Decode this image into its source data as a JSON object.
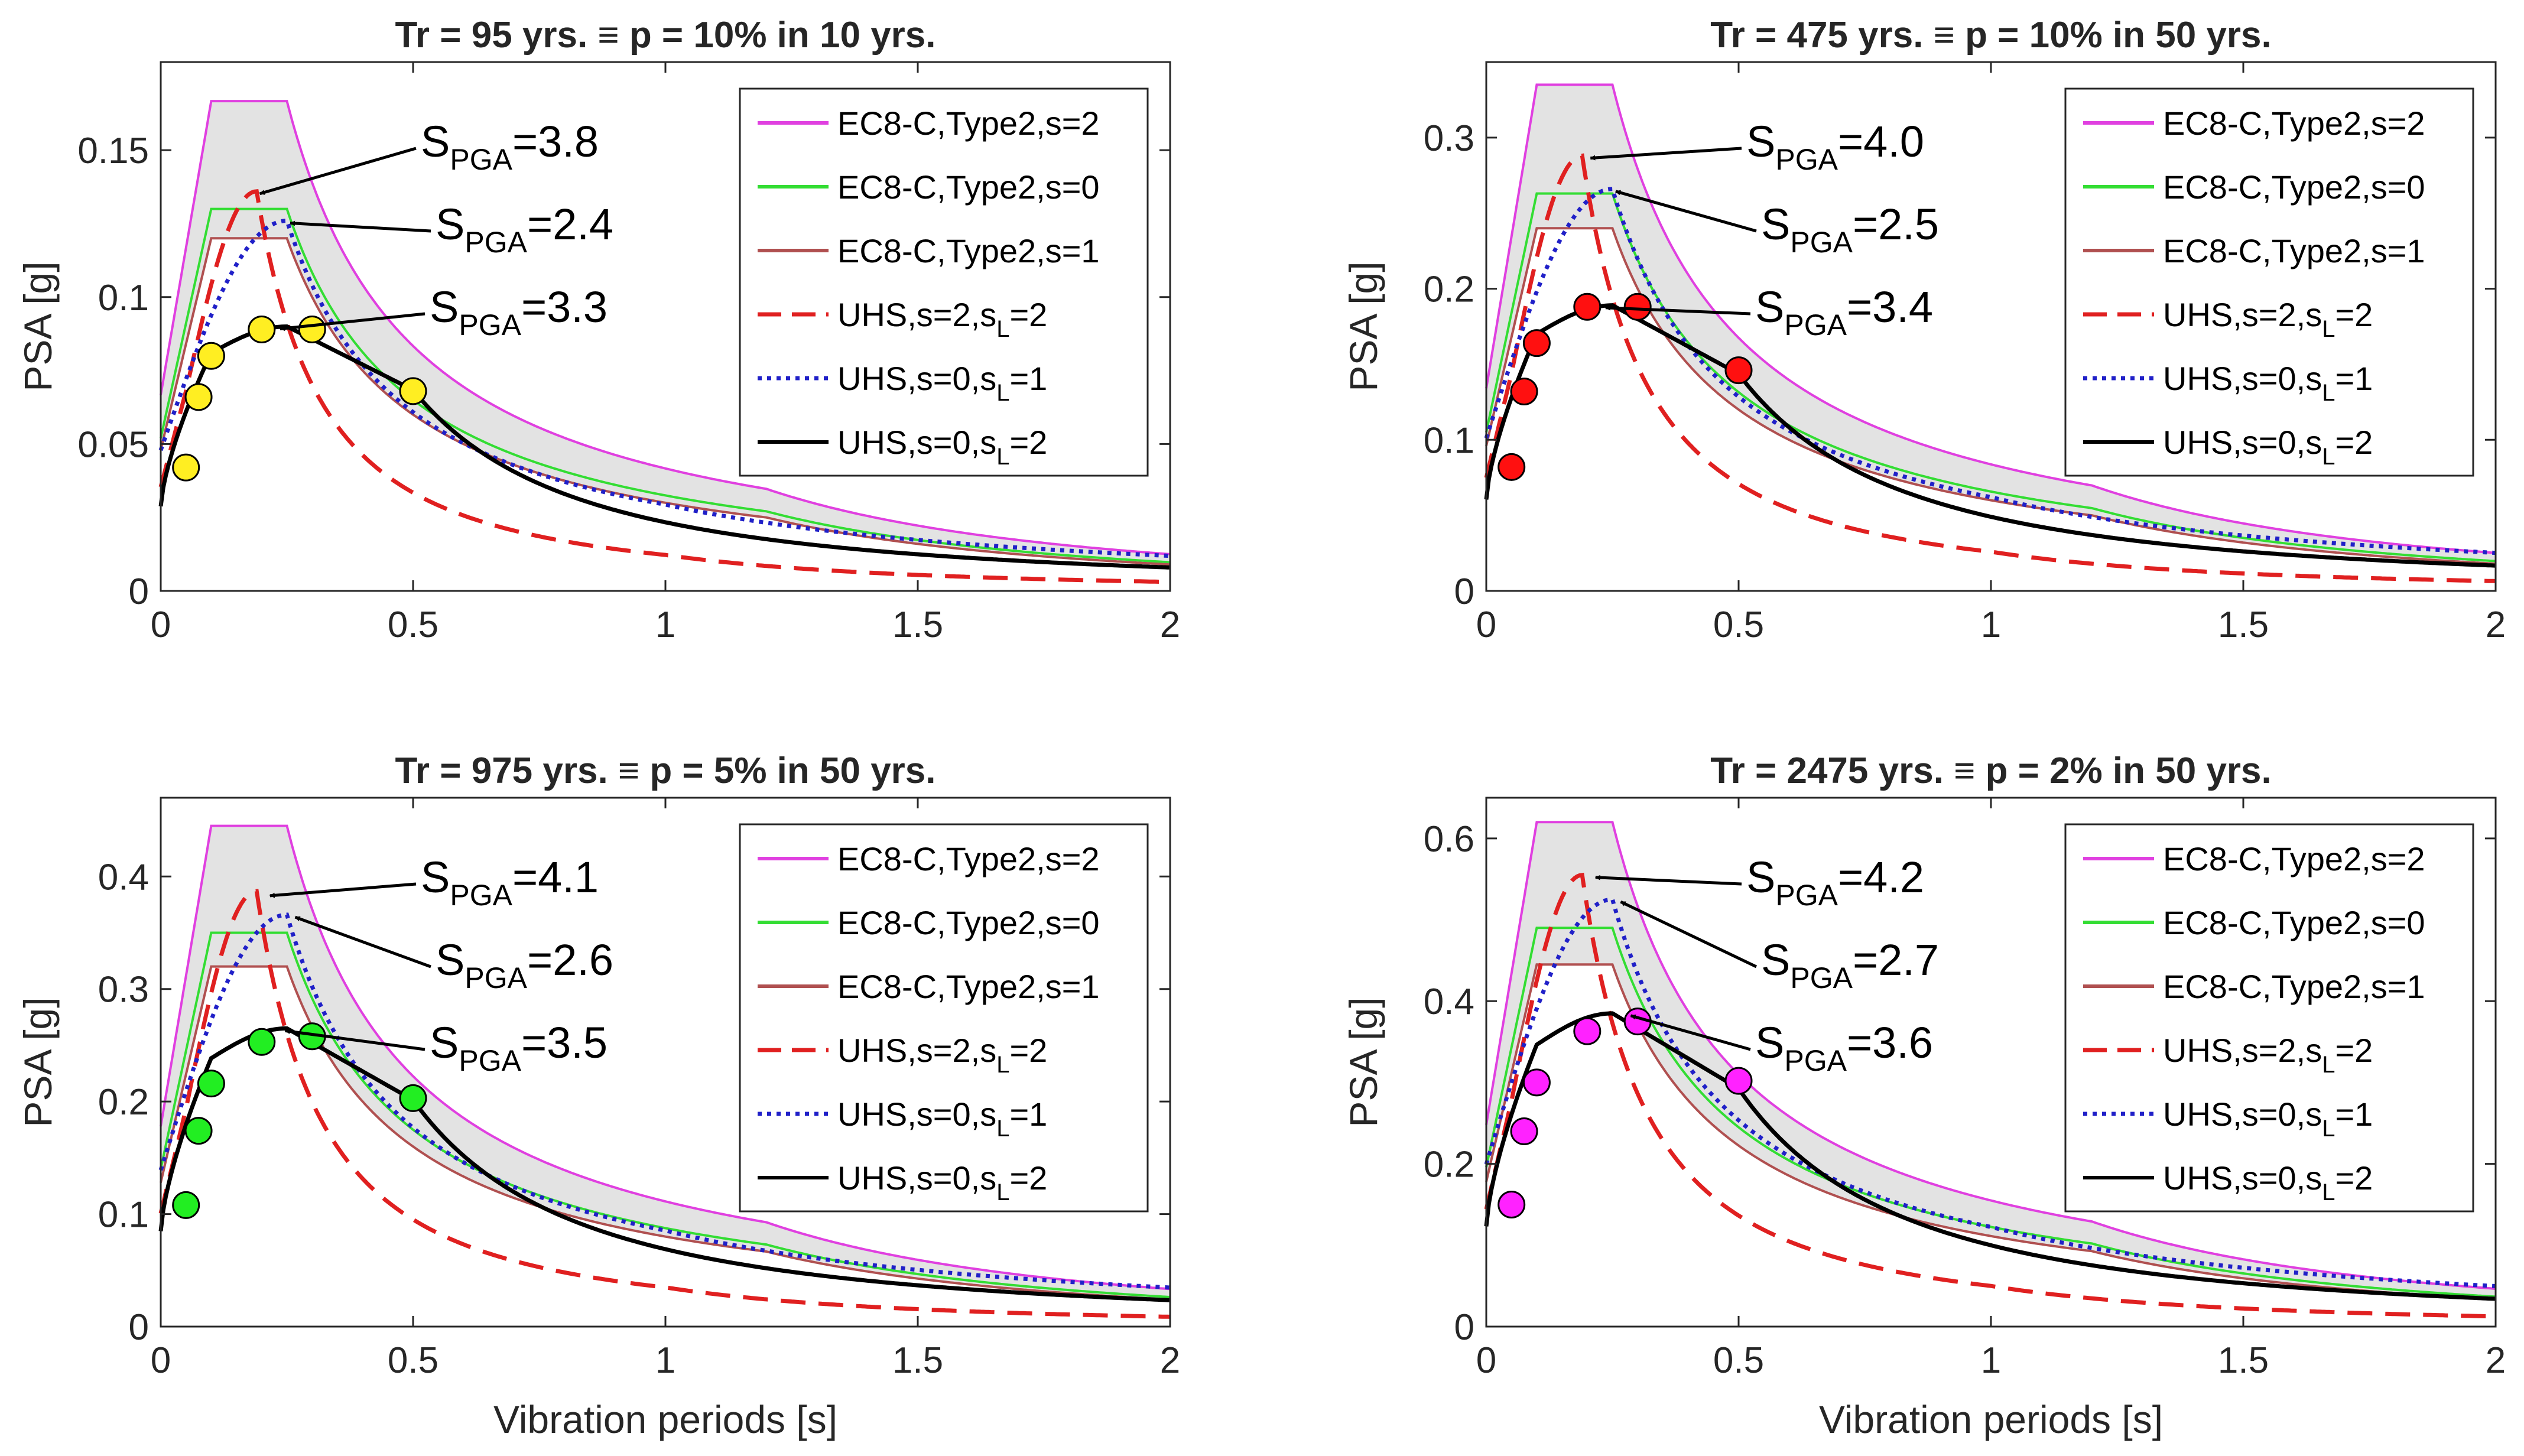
{
  "legend_labels": [
    {
      "text": "EC8-C,Type2,s=2",
      "color": "#e040e0",
      "dash": "solid"
    },
    {
      "text": "EC8-C,Type2,s=0",
      "color": "#33dd33",
      "dash": "solid"
    },
    {
      "text": "EC8-C,Type2,s=1",
      "color": "#b05050",
      "dash": "solid"
    },
    {
      "text": "UHS,s=2,s",
      "sub": "L",
      "tail": "=2",
      "color": "#e02020",
      "dash": "dashed"
    },
    {
      "text": "UHS,s=0,s",
      "sub": "L",
      "tail": "=1",
      "color": "#2020c8",
      "dash": "dotted"
    },
    {
      "text": "UHS,s=0,s",
      "sub": "L",
      "tail": "=2",
      "color": "#000000",
      "dash": "solid"
    }
  ],
  "colors": {
    "band_fill": "#e3e3e3",
    "axis": "#262626"
  },
  "chart_data": [
    {
      "type": "line",
      "title": "Tr = 95 yrs. ≡ p = 10% in 10 yrs.",
      "xlabel": "",
      "ylabel": "PSA [g]",
      "xlim": [
        0,
        2
      ],
      "ylim": [
        0,
        0.18
      ],
      "xticks": [
        0,
        0.5,
        1,
        1.5,
        2
      ],
      "xtick_labels": [
        "0",
        "0.5",
        "1",
        "1.5",
        "2"
      ],
      "yticks": [
        0,
        0.05,
        0.1,
        0.15
      ],
      "ytick_labels": [
        "0",
        "0.05",
        "0.1",
        "0.15"
      ],
      "marker_color": "#ffee22",
      "ec8": {
        "ag": [
          0.0667,
          0.052,
          0.048
        ],
        "plateau": [
          0.1667,
          0.13,
          0.12
        ]
      },
      "uhs_peaks": {
        "s2": 0.136,
        "s0L1": 0.126,
        "s0L2": 0.09
      },
      "markers": {
        "T": [
          0.05,
          0.075,
          0.1,
          0.2,
          0.3,
          0.5
        ],
        "PSA": [
          0.042,
          0.066,
          0.08,
          0.089,
          0.089,
          0.068
        ]
      },
      "annotations": [
        {
          "text": "S",
          "sub": "PGA",
          "value": "=3.8",
          "T": 0.18,
          "PSA": 0.136
        },
        {
          "text": "S",
          "sub": "PGA",
          "value": "=2.4",
          "T": 0.24,
          "PSA": 0.126
        },
        {
          "text": "S",
          "sub": "PGA",
          "value": "=3.3",
          "T": 0.22,
          "PSA": 0.09
        }
      ]
    },
    {
      "type": "line",
      "title": "Tr = 475 yrs. ≡ p = 10% in 50 yrs.",
      "xlabel": "",
      "ylabel": "PSA [g]",
      "xlim": [
        0,
        2
      ],
      "ylim": [
        0,
        0.35
      ],
      "xticks": [
        0,
        0.5,
        1,
        1.5,
        2
      ],
      "xtick_labels": [
        "0",
        "0.5",
        "1",
        "1.5",
        "2"
      ],
      "yticks": [
        0,
        0.1,
        0.2,
        0.3
      ],
      "ytick_labels": [
        "0",
        "0.1",
        "0.2",
        "0.3"
      ],
      "marker_color": "#ff1010",
      "ec8": {
        "ag": [
          0.134,
          0.105,
          0.096
        ],
        "plateau": [
          0.335,
          0.263,
          0.24
        ]
      },
      "uhs_peaks": {
        "s2": 0.288,
        "s0L1": 0.266,
        "s0L2": 0.189
      },
      "markers": {
        "T": [
          0.05,
          0.075,
          0.1,
          0.2,
          0.3,
          0.5
        ],
        "PSA": [
          0.082,
          0.132,
          0.164,
          0.188,
          0.188,
          0.146
        ]
      },
      "annotations": [
        {
          "text": "S",
          "sub": "PGA",
          "value": "=4.0",
          "T": 0.19,
          "PSA": 0.288
        },
        {
          "text": "S",
          "sub": "PGA",
          "value": "=2.5",
          "T": 0.24,
          "PSA": 0.266
        },
        {
          "text": "S",
          "sub": "PGA",
          "value": "=3.4",
          "T": 0.22,
          "PSA": 0.189
        }
      ]
    },
    {
      "type": "line",
      "title": "Tr = 975 yrs. ≡ p = 5% in 50 yrs.",
      "xlabel": "Vibration periods [s]",
      "ylabel": "PSA [g]",
      "xlim": [
        0,
        2
      ],
      "ylim": [
        0,
        0.47
      ],
      "xticks": [
        0,
        0.5,
        1,
        1.5,
        2
      ],
      "xtick_labels": [
        "0",
        "0.5",
        "1",
        "1.5",
        "2"
      ],
      "yticks": [
        0,
        0.1,
        0.2,
        0.3,
        0.4
      ],
      "ytick_labels": [
        "0",
        "0.1",
        "0.2",
        "0.3",
        "0.4"
      ],
      "marker_color": "#22ee22",
      "ec8": {
        "ag": [
          0.178,
          0.14,
          0.128
        ],
        "plateau": [
          0.445,
          0.35,
          0.32
        ]
      },
      "uhs_peaks": {
        "s2": 0.387,
        "s0L1": 0.366,
        "s0L2": 0.265
      },
      "markers": {
        "T": [
          0.05,
          0.075,
          0.1,
          0.2,
          0.3,
          0.5
        ],
        "PSA": [
          0.108,
          0.174,
          0.216,
          0.253,
          0.258,
          0.203
        ]
      },
      "annotations": [
        {
          "text": "S",
          "sub": "PGA",
          "value": "=4.1",
          "T": 0.2,
          "PSA": 0.385
        },
        {
          "text": "S",
          "sub": "PGA",
          "value": "=2.6",
          "T": 0.25,
          "PSA": 0.366
        },
        {
          "text": "S",
          "sub": "PGA",
          "value": "=3.5",
          "T": 0.23,
          "PSA": 0.265
        }
      ]
    },
    {
      "type": "line",
      "title": "Tr = 2475 yrs. ≡ p = 2% in 50 yrs.",
      "xlabel": "Vibration periods [s]",
      "ylabel": "PSA [g]",
      "xlim": [
        0,
        2
      ],
      "ylim": [
        0,
        0.65
      ],
      "xticks": [
        0,
        0.5,
        1,
        1.5,
        2
      ],
      "xtick_labels": [
        "0",
        "0.5",
        "1",
        "1.5",
        "2"
      ],
      "yticks": [
        0,
        0.2,
        0.4,
        0.6
      ],
      "ytick_labels": [
        "0",
        "0.2",
        "0.4",
        "0.6"
      ],
      "marker_color": "#ff22ff",
      "ec8": {
        "ag": [
          0.248,
          0.196,
          0.178
        ],
        "plateau": [
          0.62,
          0.49,
          0.445
        ]
      },
      "uhs_peaks": {
        "s2": 0.555,
        "s0L1": 0.525,
        "s0L2": 0.385
      },
      "markers": {
        "T": [
          0.05,
          0.075,
          0.1,
          0.2,
          0.3,
          0.5
        ],
        "PSA": [
          0.15,
          0.24,
          0.3,
          0.363,
          0.375,
          0.302
        ]
      },
      "annotations": [
        {
          "text": "S",
          "sub": "PGA",
          "value": "=4.2",
          "T": 0.2,
          "PSA": 0.555
        },
        {
          "text": "S",
          "sub": "PGA",
          "value": "=2.7",
          "T": 0.25,
          "PSA": 0.525
        },
        {
          "text": "S",
          "sub": "PGA",
          "value": "=3.6",
          "T": 0.27,
          "PSA": 0.385
        }
      ]
    }
  ]
}
